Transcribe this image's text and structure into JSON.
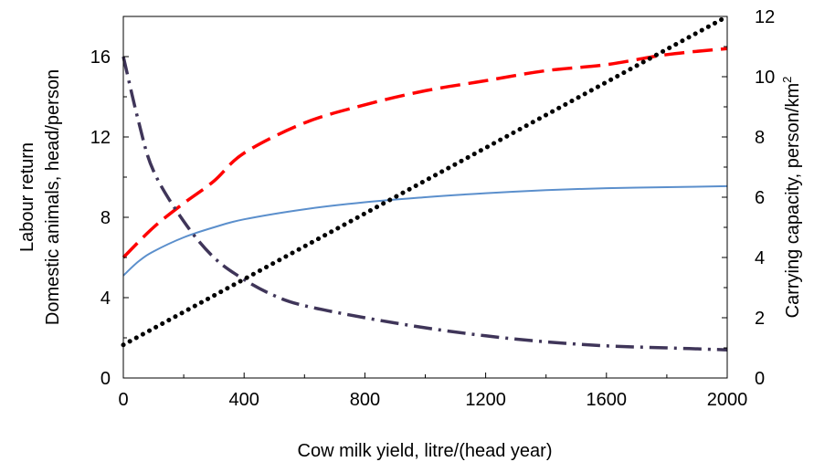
{
  "chart_data": {
    "type": "line",
    "title": "",
    "xlabel": "Cow milk yield, litre/(head year)",
    "ylabel_left_lines": [
      "Labour return",
      "Domestic animals, head/person"
    ],
    "ylabel_right": {
      "text": "Carrying capacity, person/km",
      "superscript": "2"
    },
    "xlim": [
      0,
      2000
    ],
    "ylim_left": [
      0,
      18
    ],
    "ylim_right": [
      0,
      12
    ],
    "x_ticks": [
      0,
      400,
      800,
      1200,
      1600,
      2000
    ],
    "y_ticks_left": [
      0,
      4,
      8,
      12,
      16
    ],
    "y_ticks_right": [
      0,
      2,
      4,
      6,
      8,
      10,
      12
    ],
    "grid": false,
    "series": [
      {
        "axis": "left",
        "color": "#ff0000",
        "style": "dashed",
        "x": [
          0,
          100,
          200,
          300,
          400,
          600,
          800,
          1000,
          1200,
          1400,
          1600,
          1800,
          2000
        ],
        "y": [
          6.0,
          7.5,
          8.7,
          9.8,
          11.2,
          12.7,
          13.6,
          14.3,
          14.8,
          15.3,
          15.6,
          16.1,
          16.4
        ]
      },
      {
        "axis": "left",
        "color": "#5b8fcc",
        "style": "solid",
        "x": [
          0,
          50,
          100,
          200,
          300,
          400,
          600,
          800,
          1000,
          1200,
          1400,
          1600,
          1800,
          2000
        ],
        "y": [
          5.1,
          5.8,
          6.3,
          7.0,
          7.5,
          7.9,
          8.4,
          8.75,
          9.0,
          9.2,
          9.35,
          9.45,
          9.5,
          9.55
        ]
      },
      {
        "axis": "left",
        "color": "#3f3559",
        "style": "dashdot",
        "x": [
          0,
          50,
          100,
          200,
          300,
          400,
          500,
          600,
          800,
          1000,
          1200,
          1400,
          1600,
          1800,
          2000
        ],
        "y": [
          16.0,
          12.8,
          10.3,
          7.8,
          6.0,
          4.9,
          4.1,
          3.6,
          3.0,
          2.5,
          2.1,
          1.8,
          1.6,
          1.5,
          1.4
        ]
      },
      {
        "axis": "right",
        "color": "#000000",
        "style": "dotted",
        "x": [
          0,
          2000
        ],
        "y": [
          1.1,
          12.0
        ]
      }
    ]
  }
}
